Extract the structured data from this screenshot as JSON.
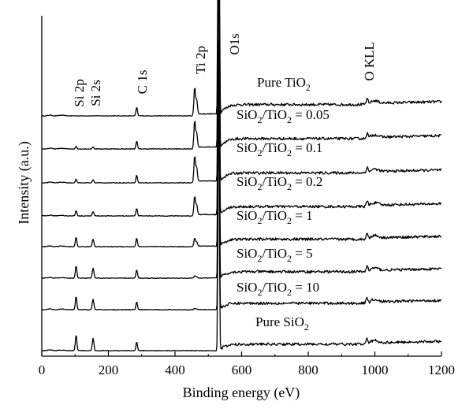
{
  "chart_data": {
    "type": "line",
    "xlabel": "Binding energy (eV)",
    "ylabel": "Intensity (a.u.)",
    "xlim": [
      0,
      1200
    ],
    "x_ticks": [
      "0",
      "200",
      "400",
      "600",
      "800",
      "1000",
      "1200"
    ],
    "y_ticks_shown": false,
    "grid": false,
    "legend": "none",
    "peaks": [
      {
        "label": "Si 2p",
        "x": 103
      },
      {
        "label": "Si 2s",
        "x": 154
      },
      {
        "label": "C 1s",
        "x": 285
      },
      {
        "label": "Ti 2p",
        "x": 459
      },
      {
        "label": "O1s",
        "x": 531
      },
      {
        "label": "O KLL",
        "x": 977
      }
    ],
    "series": [
      {
        "name": "Pure TiO2",
        "label_main": "Pure TiO",
        "label_sub": "2",
        "label_rest": "",
        "ti": 1.0,
        "si": 0.0,
        "c": 0.6,
        "o": 4.6,
        "step": 0.55,
        "baseline": 0.0
      },
      {
        "name": "SiO2/TiO2 = 0.05",
        "label_main": "SiO",
        "label_sub": "2",
        "label_mid": "/TiO",
        "label_sub2": "2",
        "label_rest": " = 0.05",
        "ti": 1.0,
        "si": 0.12,
        "c": 0.55,
        "o": 3.8,
        "step": 0.5,
        "baseline": 1.0
      },
      {
        "name": "SiO2/TiO2 = 0.1",
        "label_main": "SiO",
        "label_sub": "2",
        "label_mid": "/TiO",
        "label_sub2": "2",
        "label_rest": " = 0.1",
        "ti": 0.95,
        "si": 0.18,
        "c": 0.55,
        "o": 3.2,
        "step": 0.48,
        "baseline": 2.0
      },
      {
        "name": "SiO2/TiO2 = 0.2",
        "label_main": "SiO",
        "label_sub": "2",
        "label_mid": "/TiO",
        "label_sub2": "2",
        "label_rest": " = 0.2",
        "ti": 0.7,
        "si": 0.25,
        "c": 0.55,
        "o": 2.9,
        "step": 0.45,
        "baseline": 3.0
      },
      {
        "name": "SiO2/TiO2 = 1",
        "label_main": "SiO",
        "label_sub": "2",
        "label_mid": "/TiO",
        "label_sub2": "2",
        "label_rest": " = 1",
        "ti": 0.3,
        "si": 0.45,
        "c": 0.6,
        "o": 2.5,
        "step": 0.35,
        "baseline": 4.0
      },
      {
        "name": "SiO2/TiO2 = 5",
        "label_main": "SiO",
        "label_sub": "2",
        "label_mid": "/TiO",
        "label_sub2": "2",
        "label_rest": " = 5",
        "ti": 0.08,
        "si": 0.6,
        "c": 0.6,
        "o": 2.4,
        "step": 0.3,
        "baseline": 5.0
      },
      {
        "name": "SiO2/TiO2 = 10",
        "label_main": "SiO",
        "label_sub": "2",
        "label_mid": "/TiO",
        "label_sub2": "2",
        "label_rest": " = 10",
        "ti": 0.04,
        "si": 0.62,
        "c": 0.55,
        "o": 2.4,
        "step": 0.3,
        "baseline": 6.0
      },
      {
        "name": "Pure SiO2",
        "label_main": "Pure SiO",
        "label_sub": "2",
        "label_rest": "",
        "ti": 0.0,
        "si": 0.75,
        "c": 0.6,
        "o": 3.6,
        "step": 0.3,
        "baseline": 7.0
      }
    ]
  }
}
